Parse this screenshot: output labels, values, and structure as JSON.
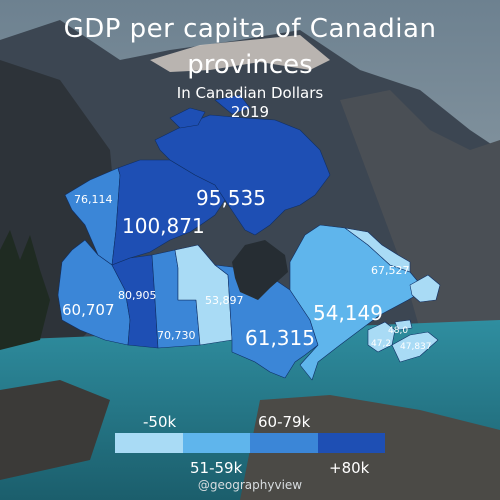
{
  "title_line1": "GDP per capita of Canadian",
  "title_line2": "provinces",
  "subtitle": "In Canadian Dollars",
  "year": "2019",
  "provinces": {
    "yukon": "76,114",
    "nwt": "100,871",
    "nunavut": "95,535",
    "bc": "60,707",
    "alberta": "80,905",
    "saskatchewan": "70,730",
    "manitoba": "53,897",
    "ontario": "61,315",
    "quebec": "54,149",
    "newfoundland": "67,527",
    "pei": "48,0",
    "new_brunswick": "47,2",
    "nova_scotia": "47,837"
  },
  "legend": {
    "c1": "-50k",
    "c2": "51-59k",
    "c3": "60-79k",
    "c4": "+80k"
  },
  "legend_colors": {
    "c1": "#a9dbf5",
    "c2": "#5fb5ec",
    "c3": "#3b86d7",
    "c4": "#1e4fb4"
  },
  "credit": "@geographyview"
}
